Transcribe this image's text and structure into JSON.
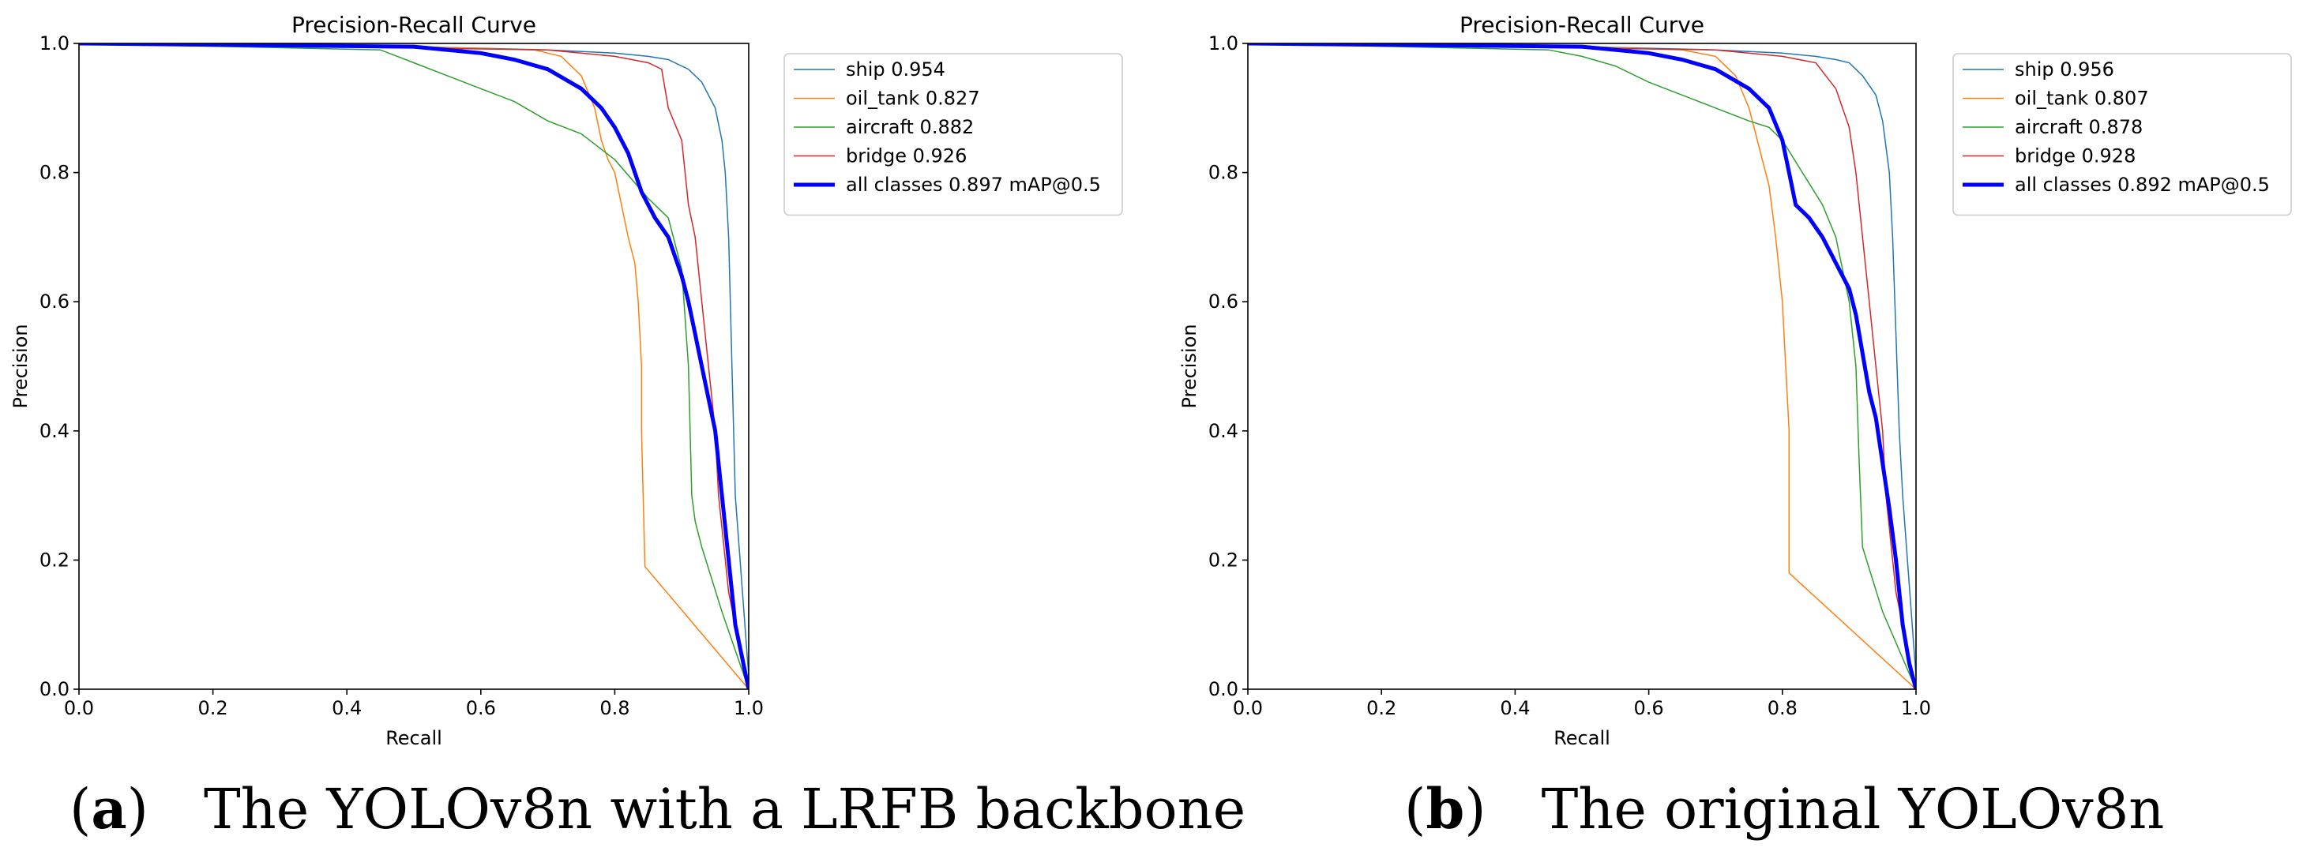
{
  "captions": [
    {
      "label": "a",
      "text": "The YOLOv8n with a LRFB backbone"
    },
    {
      "label": "b",
      "text": "The original YOLOv8n"
    }
  ],
  "chart_data": [
    {
      "type": "line",
      "title": "Precision-Recall Curve",
      "xlabel": "Recall",
      "ylabel": "Precision",
      "xlim": [
        0,
        1
      ],
      "ylim": [
        0,
        1
      ],
      "xticks": [
        "0.0",
        "0.2",
        "0.4",
        "0.6",
        "0.8",
        "1.0"
      ],
      "yticks": [
        "0.0",
        "0.2",
        "0.4",
        "0.6",
        "0.8",
        "1.0"
      ],
      "grid": false,
      "legend_position": "outside-top-right",
      "series": [
        {
          "name": "ship 0.954",
          "color": "#1f77b4",
          "width": 1.5,
          "x": [
            0,
            0.5,
            0.7,
            0.8,
            0.85,
            0.88,
            0.91,
            0.93,
            0.95,
            0.96,
            0.965,
            0.97,
            0.975,
            0.98,
            1.0
          ],
          "y": [
            1,
            0.995,
            0.99,
            0.985,
            0.98,
            0.975,
            0.96,
            0.94,
            0.9,
            0.85,
            0.8,
            0.7,
            0.5,
            0.3,
            0.02
          ]
        },
        {
          "name": "oil_tank 0.827",
          "color": "#ff7f0e",
          "width": 1.5,
          "x": [
            0,
            0.5,
            0.68,
            0.72,
            0.75,
            0.77,
            0.78,
            0.79,
            0.8,
            0.81,
            0.82,
            0.83,
            0.835,
            0.84,
            0.84,
            0.845,
            1.0
          ],
          "y": [
            1,
            0.995,
            0.99,
            0.98,
            0.95,
            0.9,
            0.85,
            0.82,
            0.8,
            0.75,
            0.7,
            0.66,
            0.6,
            0.5,
            0.4,
            0.19,
            0.0
          ]
        },
        {
          "name": "aircraft 0.882",
          "color": "#2ca02c",
          "width": 1.5,
          "x": [
            0,
            0.45,
            0.5,
            0.55,
            0.6,
            0.65,
            0.7,
            0.75,
            0.8,
            0.85,
            0.88,
            0.9,
            0.91,
            0.915,
            0.92,
            0.93,
            0.96,
            1.0
          ],
          "y": [
            1,
            0.99,
            0.97,
            0.95,
            0.93,
            0.91,
            0.88,
            0.86,
            0.82,
            0.76,
            0.73,
            0.65,
            0.5,
            0.3,
            0.26,
            0.22,
            0.12,
            0.0
          ]
        },
        {
          "name": "bridge 0.926",
          "color": "#d62728",
          "width": 1.5,
          "x": [
            0,
            0.7,
            0.8,
            0.85,
            0.87,
            0.88,
            0.9,
            0.91,
            0.92,
            0.93,
            0.94,
            0.95,
            0.955,
            0.96,
            0.97,
            0.98,
            1.0
          ],
          "y": [
            1,
            0.99,
            0.98,
            0.97,
            0.96,
            0.9,
            0.85,
            0.75,
            0.7,
            0.6,
            0.5,
            0.4,
            0.3,
            0.25,
            0.15,
            0.1,
            0.0
          ]
        },
        {
          "name": "all classes 0.897 mAP@0.5",
          "color": "#0000ff",
          "width": 5,
          "x": [
            0,
            0.5,
            0.6,
            0.65,
            0.7,
            0.75,
            0.78,
            0.8,
            0.82,
            0.84,
            0.86,
            0.88,
            0.9,
            0.91,
            0.92,
            0.93,
            0.94,
            0.95,
            0.96,
            0.97,
            0.98,
            0.99,
            1.0
          ],
          "y": [
            1,
            0.995,
            0.985,
            0.975,
            0.96,
            0.93,
            0.9,
            0.87,
            0.83,
            0.77,
            0.73,
            0.7,
            0.64,
            0.6,
            0.55,
            0.5,
            0.45,
            0.4,
            0.3,
            0.2,
            0.1,
            0.05,
            0.0
          ]
        }
      ]
    },
    {
      "type": "line",
      "title": "Precision-Recall Curve",
      "xlabel": "Recall",
      "ylabel": "Precision",
      "xlim": [
        0,
        1
      ],
      "ylim": [
        0,
        1
      ],
      "xticks": [
        "0.0",
        "0.2",
        "0.4",
        "0.6",
        "0.8",
        "1.0"
      ],
      "yticks": [
        "0.0",
        "0.2",
        "0.4",
        "0.6",
        "0.8",
        "1.0"
      ],
      "grid": false,
      "legend_position": "outside-top-right",
      "series": [
        {
          "name": "ship 0.956",
          "color": "#1f77b4",
          "width": 1.5,
          "x": [
            0,
            0.5,
            0.7,
            0.8,
            0.85,
            0.88,
            0.9,
            0.92,
            0.94,
            0.95,
            0.96,
            0.965,
            0.97,
            0.975,
            0.98,
            1.0
          ],
          "y": [
            1,
            0.995,
            0.99,
            0.985,
            0.98,
            0.975,
            0.97,
            0.95,
            0.92,
            0.88,
            0.8,
            0.7,
            0.55,
            0.4,
            0.3,
            0.02
          ]
        },
        {
          "name": "oil_tank 0.807",
          "color": "#ff7f0e",
          "width": 1.5,
          "x": [
            0,
            0.5,
            0.65,
            0.7,
            0.73,
            0.75,
            0.76,
            0.77,
            0.78,
            0.79,
            0.8,
            0.805,
            0.81,
            0.81,
            1.0
          ],
          "y": [
            1,
            0.995,
            0.99,
            0.98,
            0.95,
            0.9,
            0.86,
            0.82,
            0.78,
            0.7,
            0.6,
            0.5,
            0.4,
            0.18,
            0.0
          ]
        },
        {
          "name": "aircraft 0.878",
          "color": "#2ca02c",
          "width": 1.5,
          "x": [
            0,
            0.45,
            0.5,
            0.55,
            0.6,
            0.65,
            0.7,
            0.75,
            0.78,
            0.8,
            0.83,
            0.86,
            0.88,
            0.9,
            0.91,
            0.915,
            0.92,
            0.95,
            1.0
          ],
          "y": [
            1,
            0.99,
            0.98,
            0.965,
            0.94,
            0.92,
            0.9,
            0.88,
            0.87,
            0.85,
            0.8,
            0.75,
            0.7,
            0.6,
            0.5,
            0.35,
            0.22,
            0.12,
            0.0
          ]
        },
        {
          "name": "bridge 0.928",
          "color": "#d62728",
          "width": 1.5,
          "x": [
            0,
            0.7,
            0.8,
            0.85,
            0.88,
            0.9,
            0.91,
            0.92,
            0.93,
            0.94,
            0.95,
            0.955,
            0.96,
            0.97,
            0.98,
            1.0
          ],
          "y": [
            1,
            0.99,
            0.98,
            0.97,
            0.93,
            0.87,
            0.8,
            0.7,
            0.6,
            0.5,
            0.4,
            0.3,
            0.25,
            0.15,
            0.1,
            0.0
          ]
        },
        {
          "name": "all classes 0.892 mAP@0.5",
          "color": "#0000ff",
          "width": 5,
          "x": [
            0,
            0.5,
            0.6,
            0.65,
            0.7,
            0.75,
            0.78,
            0.8,
            0.81,
            0.82,
            0.84,
            0.86,
            0.88,
            0.9,
            0.91,
            0.92,
            0.93,
            0.94,
            0.95,
            0.96,
            0.97,
            0.98,
            0.99,
            1.0
          ],
          "y": [
            1,
            0.995,
            0.985,
            0.975,
            0.96,
            0.93,
            0.9,
            0.85,
            0.8,
            0.75,
            0.73,
            0.7,
            0.66,
            0.62,
            0.58,
            0.52,
            0.46,
            0.42,
            0.35,
            0.28,
            0.2,
            0.1,
            0.04,
            0.0
          ]
        }
      ]
    }
  ]
}
